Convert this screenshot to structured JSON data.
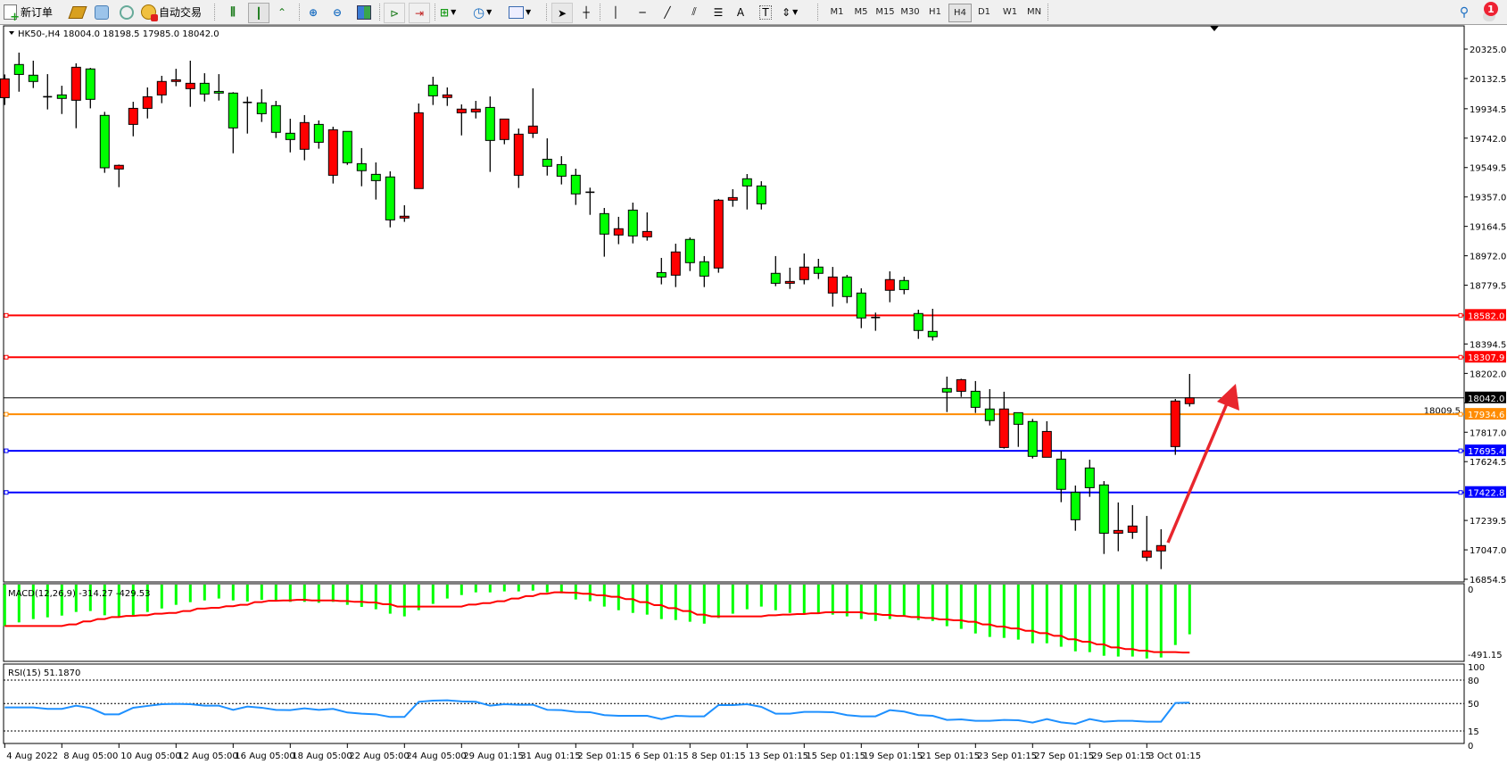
{
  "toolbar": {
    "new_order": "新订单",
    "auto_trading": "自动交易",
    "timeframes": [
      "M1",
      "M5",
      "M15",
      "M30",
      "H1",
      "H4",
      "D1",
      "W1",
      "MN"
    ],
    "selected_timeframe": "H4",
    "notification_count": "1",
    "icons": [
      "new-order-icon",
      "market-watch-icon",
      "cloud-icon",
      "signals-icon",
      "auto-trading-icon",
      "bar-chart-icon",
      "candlestick-icon",
      "line-chart-icon",
      "zoom-in-icon",
      "zoom-out-icon",
      "tile-windows-icon",
      "chart-shift-icon",
      "autoscroll-icon",
      "indicators-icon",
      "periods-icon",
      "templates-icon",
      "cursor-icon",
      "crosshair-icon",
      "vertical-line-icon",
      "horizontal-line-icon",
      "trendline-icon",
      "equidistant-channel-icon",
      "fibonacci-icon",
      "text-icon",
      "text-label-icon",
      "arrows-icon",
      "search-icon",
      "notification-icon"
    ]
  },
  "chart": {
    "title": "HK50-,H4  18004.0 18198.5 17985.0 18042.0",
    "colors": {
      "bull": "#ff0000",
      "bear": "#00ff00",
      "macd_hist": "#00ff00",
      "macd_signal": "#ff0000",
      "rsi": "#1e90ff",
      "arrow": "#e8262d"
    }
  },
  "chart_data": {
    "type": "candlestick",
    "symbol": "HK50-",
    "timeframe": "H4",
    "ohlc_columns": [
      "open",
      "high",
      "low",
      "close"
    ],
    "candles": [
      [
        20007,
        20159,
        19959,
        20130
      ],
      [
        20224,
        20302,
        20046,
        20159
      ],
      [
        20154,
        20249,
        20070,
        20113
      ],
      [
        20013,
        20161,
        19930,
        20013
      ],
      [
        20025,
        20085,
        19900,
        20002
      ],
      [
        19990,
        20232,
        19807,
        20206
      ],
      [
        20195,
        20202,
        19937,
        19996
      ],
      [
        19891,
        19914,
        19515,
        19548
      ],
      [
        19540,
        19569,
        19421,
        19564
      ],
      [
        19832,
        19980,
        19754,
        19937
      ],
      [
        19937,
        20074,
        19871,
        20013
      ],
      [
        20025,
        20150,
        19971,
        20113
      ],
      [
        20113,
        20196,
        20082,
        20124
      ],
      [
        20066,
        20249,
        19947,
        20101
      ],
      [
        20101,
        20167,
        19982,
        20031
      ],
      [
        20048,
        20161,
        19988,
        20037
      ],
      [
        20037,
        20043,
        19643,
        19809
      ],
      [
        19976,
        20013,
        19772,
        19976
      ],
      [
        19973,
        20062,
        19848,
        19902
      ],
      [
        19955,
        19986,
        19743,
        19780
      ],
      [
        19774,
        19869,
        19649,
        19733
      ],
      [
        19669,
        19893,
        19597,
        19844
      ],
      [
        19832,
        19858,
        19673,
        19715
      ],
      [
        19499,
        19817,
        19445,
        19797
      ],
      [
        19786,
        19786,
        19567,
        19581
      ],
      [
        19575,
        19677,
        19427,
        19529
      ],
      [
        19505,
        19583,
        19340,
        19464
      ],
      [
        19488,
        19525,
        19158,
        19207
      ],
      [
        19219,
        19303,
        19194,
        19231
      ],
      [
        19412,
        19969,
        19412,
        19908
      ],
      [
        20089,
        20144,
        19959,
        20019
      ],
      [
        20008,
        20074,
        19953,
        20025
      ],
      [
        19908,
        19963,
        19760,
        19932
      ],
      [
        19914,
        19986,
        19871,
        19932
      ],
      [
        19943,
        20015,
        19521,
        19727
      ],
      [
        19733,
        19867,
        19702,
        19867
      ],
      [
        19499,
        19805,
        19416,
        19768
      ],
      [
        19774,
        20068,
        19743,
        19821
      ],
      [
        19604,
        19741,
        19497,
        19558
      ],
      [
        19569,
        19624,
        19439,
        19493
      ],
      [
        19499,
        19542,
        19305,
        19377
      ],
      [
        19388,
        19418,
        19240,
        19388
      ],
      [
        19248,
        19285,
        18966,
        19114
      ],
      [
        19108,
        19227,
        19048,
        19149
      ],
      [
        19271,
        19320,
        19053,
        19102
      ],
      [
        19096,
        19256,
        19071,
        19131
      ],
      [
        18862,
        18958,
        18785,
        18833
      ],
      [
        18845,
        19051,
        18767,
        18997
      ],
      [
        19079,
        19092,
        18872,
        18927
      ],
      [
        18933,
        18970,
        18767,
        18839
      ],
      [
        18892,
        19344,
        18861,
        19336
      ],
      [
        19336,
        19408,
        19293,
        19353
      ],
      [
        19476,
        19507,
        19275,
        19429
      ],
      [
        19429,
        19460,
        19275,
        19312
      ],
      [
        18857,
        18970,
        18773,
        18792
      ],
      [
        18792,
        18894,
        18755,
        18804
      ],
      [
        18816,
        18987,
        18785,
        18898
      ],
      [
        18898,
        18952,
        18820,
        18857
      ],
      [
        18728,
        18899,
        18639,
        18833
      ],
      [
        18833,
        18847,
        18662,
        18705
      ],
      [
        18728,
        18759,
        18498,
        18565
      ],
      [
        18568,
        18600,
        18481,
        18568
      ],
      [
        18746,
        18870,
        18668,
        18816
      ],
      [
        18810,
        18835,
        18720,
        18751
      ],
      [
        18594,
        18619,
        18428,
        18483
      ],
      [
        18477,
        18625,
        18417,
        18442
      ],
      [
        18103,
        18181,
        17949,
        18080
      ],
      [
        18085,
        18167,
        18048,
        18161
      ],
      [
        18085,
        18152,
        17943,
        17980
      ],
      [
        17969,
        18099,
        17861,
        17893
      ],
      [
        17717,
        18082,
        17710,
        17969
      ],
      [
        17945,
        17945,
        17721,
        17869
      ],
      [
        17887,
        17904,
        17645,
        17659
      ],
      [
        17653,
        17889,
        17653,
        17822
      ],
      [
        17641,
        17694,
        17359,
        17443
      ],
      [
        17423,
        17468,
        17172,
        17244
      ],
      [
        17583,
        17637,
        17394,
        17454
      ],
      [
        17472,
        17497,
        17020,
        17156
      ],
      [
        17156,
        17357,
        17038,
        17174
      ],
      [
        17162,
        17340,
        17119,
        17203
      ],
      [
        16999,
        17269,
        16973,
        17040
      ],
      [
        17040,
        17182,
        16921,
        17075
      ],
      [
        17723,
        18035,
        17669,
        18021
      ],
      [
        18004,
        18198.5,
        17985,
        18042
      ]
    ],
    "price_axis_ticks": [
      "20325.0",
      "20132.5",
      "19934.5",
      "19742.0",
      "19549.5",
      "19357.0",
      "19164.5",
      "18972.0",
      "18779.5",
      "18394.5",
      "18202.0",
      "18009.5",
      "17817.0",
      "17624.5",
      "17239.5",
      "17047.0",
      "16854.5"
    ],
    "y_range": [
      16854.5,
      20420
    ],
    "current_price": {
      "value": 18042.0,
      "label": "18042.0",
      "color": "#000000"
    },
    "horizontal_lines": [
      {
        "value": 18582.0,
        "label": "18582.0",
        "color": "#ff0000"
      },
      {
        "value": 18307.9,
        "label": "18307.9",
        "color": "#ff0000"
      },
      {
        "value": 17934.6,
        "label": "17934.6",
        "color": "#ff8c00"
      },
      {
        "value": 17695.4,
        "label": "17695.4",
        "color": "#0000ff"
      },
      {
        "value": 17422.8,
        "label": "17422.8",
        "color": "#0000ff"
      }
    ],
    "time_labels": [
      "4 Aug 2022",
      "8 Aug 05:00",
      "10 Aug 05:00",
      "12 Aug 05:00",
      "16 Aug 05:00",
      "18 Aug 05:00",
      "22 Aug 05:00",
      "24 Aug 05:00",
      "29 Aug 01:15",
      "31 Aug 01:15",
      "2 Sep 01:15",
      "6 Sep 01:15",
      "8 Sep 01:15",
      "13 Sep 01:15",
      "15 Sep 01:15",
      "19 Sep 01:15",
      "21 Sep 01:15",
      "23 Sep 01:15",
      "27 Sep 01:15",
      "29 Sep 01:15",
      "3 Oct 01:15"
    ],
    "macd": {
      "label": "MACD(12,26,9) -314.27 -429.53",
      "axis_ticks": [
        "0",
        "-491.15"
      ],
      "histogram": [
        -262,
        -239,
        -218,
        -207,
        -196,
        -173,
        -167,
        -194,
        -207,
        -194,
        -173,
        -151,
        -128,
        -111,
        -100,
        -88,
        -100,
        -107,
        -96,
        -102,
        -109,
        -109,
        -115,
        -109,
        -128,
        -141,
        -156,
        -184,
        -201,
        -162,
        -122,
        -88,
        -66,
        -49,
        -49,
        -43,
        -43,
        -38,
        -49,
        -55,
        -94,
        -105,
        -139,
        -162,
        -179,
        -190,
        -218,
        -224,
        -235,
        -247,
        -211,
        -184,
        -156,
        -139,
        -162,
        -179,
        -184,
        -184,
        -190,
        -201,
        -218,
        -230,
        -218,
        -201,
        -224,
        -230,
        -263,
        -280,
        -309,
        -331,
        -337,
        -348,
        -371,
        -371,
        -393,
        -422,
        -427,
        -450,
        -455,
        -455,
        -467,
        -461,
        -382,
        -314.27
      ],
      "signal": [
        -262,
        -262,
        -262,
        -262,
        -262,
        -252,
        -233,
        -218,
        -205,
        -198,
        -194,
        -184,
        -179,
        -167,
        -152,
        -147,
        -137,
        -128,
        -111,
        -102,
        -100,
        -96,
        -100,
        -100,
        -104,
        -109,
        -113,
        -124,
        -139,
        -139,
        -139,
        -139,
        -139,
        -126,
        -117,
        -105,
        -88,
        -73,
        -58,
        -49,
        -51,
        -58,
        -68,
        -77,
        -92,
        -111,
        -130,
        -149,
        -167,
        -190,
        -201,
        -201,
        -201,
        -201,
        -194,
        -190,
        -186,
        -181,
        -175,
        -175,
        -175,
        -184,
        -192,
        -198,
        -205,
        -211,
        -220,
        -226,
        -235,
        -252,
        -265,
        -277,
        -292,
        -307,
        -324,
        -346,
        -361,
        -378,
        -397,
        -408,
        -418,
        -427,
        -427,
        -429.53
      ]
    },
    "rsi": {
      "label": "RSI(15) 51.1870",
      "axis_ticks": [
        "100",
        "80",
        "50",
        "15",
        "0"
      ],
      "levels": [
        80,
        50,
        15
      ],
      "values": [
        45.1,
        45.1,
        45.1,
        43.2,
        43.2,
        47.3,
        44.3,
        36.3,
        36.3,
        44.7,
        47.0,
        49.2,
        49.6,
        49.2,
        47.3,
        47.3,
        42.0,
        46.2,
        44.7,
        42.0,
        41.6,
        43.9,
        42.0,
        43.2,
        38.6,
        37.1,
        36.3,
        32.9,
        32.9,
        52.3,
        53.8,
        54.2,
        52.7,
        52.3,
        47.3,
        49.2,
        48.5,
        48.5,
        42.0,
        41.6,
        39.4,
        39.0,
        35.2,
        34.4,
        34.4,
        34.4,
        30.2,
        34.4,
        33.7,
        33.7,
        48.1,
        48.1,
        49.2,
        45.8,
        37.1,
        37.1,
        39.4,
        39.4,
        39.0,
        35.2,
        33.7,
        33.7,
        41.6,
        39.8,
        35.2,
        34.4,
        29.1,
        29.8,
        27.9,
        27.9,
        29.1,
        28.7,
        25.7,
        30.2,
        26.0,
        24.1,
        30.2,
        26.8,
        27.9,
        27.9,
        26.8,
        26.8,
        50.8,
        51.187
      ]
    }
  }
}
